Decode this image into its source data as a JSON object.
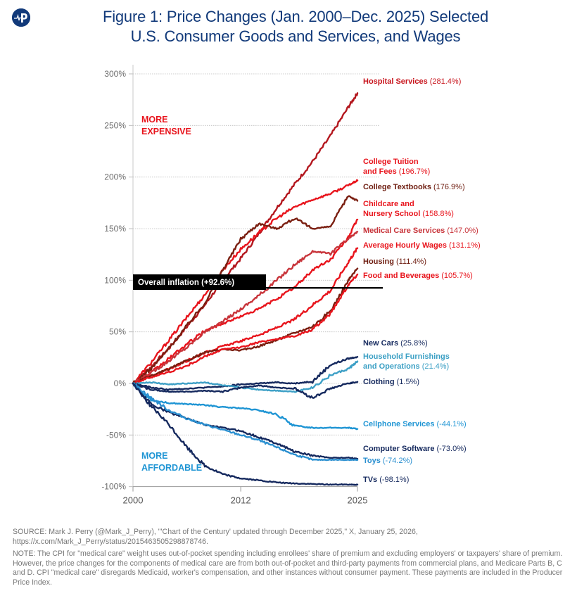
{
  "logo": {
    "icon": "heartbeat-p-logo-icon"
  },
  "title": {
    "line1": "Figure 1: Price Changes (Jan. 2000–Dec. 2025) Selected",
    "line2": "U.S. Consumer Goods and Services, and Wages"
  },
  "footer": {
    "source": "SOURCE: Mark J. Perry (@Mark_J_Perry), \"'Chart of the Century' updated through December 2025,\" X, January 25, 2026, https://x.com/Mark_J_Perry/status/2015463505298878746.",
    "note": "NOTE: The CPI for \"medical care\" weight uses out-of-pocket spending including enrollees' share of premium and excluding employers' or taxpayers' share of premium. However, the price changes for the components of medical care are from both out-of-pocket and third-party payments from commercial plans, and Medicare Parts B, C and D. CPI \"medical care\" disregards Medicaid, worker's compensation, and other instances without consumer payment. These payments are included in the Producer Price Index."
  },
  "chart_data": {
    "type": "line",
    "title": "Figure 1: Price Changes (Jan. 2000–Dec. 2025) Selected U.S. Consumer Goods and Services, and Wages",
    "xlabel": "",
    "ylabel": "",
    "xlim": [
      2000,
      2025
    ],
    "ylim": [
      -100,
      300
    ],
    "x_ticks": [
      "2000",
      "2012",
      "2025"
    ],
    "x_tick_values": [
      2000,
      2012,
      2025
    ],
    "y_ticks": [
      "300%",
      "250%",
      "200%",
      "150%",
      "100%",
      "50%",
      "0%",
      "-50%",
      "-100%"
    ],
    "y_tick_values": [
      300,
      250,
      200,
      150,
      100,
      50,
      0,
      -50,
      -100
    ],
    "grid": "horizontal-dotted",
    "legend": "direct-labels-right",
    "annotations": {
      "more_expensive": [
        "MORE",
        "EXPENSIVE"
      ],
      "more_affordable": [
        "MORE",
        "AFFORDABLE"
      ],
      "overall_inflation": {
        "label": "Overall inflation (+92.6%)",
        "value": 92.6
      }
    },
    "colors": {
      "red": "#e8141c",
      "dark_red": "#b3161d",
      "maroon": "#7a1e10",
      "rose": "#c8343a",
      "navy": "#15295e",
      "light_blue": "#1f95d4",
      "teal_blue": "#3ea0c6",
      "mid_blue": "#2a8fd0",
      "axis_text": "#6b6b6b",
      "title": "#123a7a"
    },
    "x": [
      2000,
      2002,
      2004,
      2006,
      2008,
      2010,
      2012,
      2014,
      2016,
      2018,
      2020,
      2022,
      2024,
      2025
    ],
    "series": [
      {
        "name": "Hospital Services",
        "final": "(281.4%)",
        "color": "#b3161d",
        "label_color": "#b3161d",
        "values": [
          0,
          16,
          34,
          55,
          76,
          100,
          121,
          145,
          170,
          193,
          215,
          240,
          268,
          281.4
        ]
      },
      {
        "name": "College Tuition and Fees",
        "final": "(196.7%)",
        "color": "#e8141c",
        "label_color": "#e8141c",
        "values": [
          0,
          20,
          42,
          64,
          86,
          110,
          130,
          146,
          160,
          171,
          178,
          184,
          192,
          196.7
        ]
      },
      {
        "name": "College Textbooks",
        "final": "(176.9%)",
        "color": "#7a1e10",
        "label_color": "#7a1e10",
        "values": [
          0,
          14,
          34,
          56,
          78,
          110,
          140,
          155,
          150,
          160,
          150,
          152,
          182,
          176.9
        ]
      },
      {
        "name": "Childcare and Nursery School",
        "final": "(158.8%)",
        "color": "#e8141c",
        "label_color": "#e8141c",
        "values": [
          0,
          10,
          24,
          38,
          51,
          58,
          65,
          72,
          82,
          93,
          110,
          120,
          142,
          158.8
        ]
      },
      {
        "name": "Medical Care Services",
        "final": "(147.0%)",
        "color": "#c8343a",
        "label_color": "#c8343a",
        "values": [
          0,
          10,
          22,
          35,
          50,
          60,
          72,
          85,
          100,
          115,
          128,
          126,
          140,
          147.0
        ]
      },
      {
        "name": "Average Hourly Wages",
        "final": "(131.1%)",
        "color": "#e8141c",
        "label_color": "#e8141c",
        "values": [
          0,
          7,
          14,
          22,
          30,
          36,
          41,
          47,
          54,
          62,
          76,
          90,
          118,
          131.1
        ]
      },
      {
        "name": "Housing",
        "final": "(111.4%)",
        "color": "#7a1e10",
        "label_color": "#7a1e10",
        "values": [
          0,
          7,
          14,
          22,
          30,
          33,
          32,
          36,
          42,
          49,
          55,
          70,
          100,
          111.4
        ]
      },
      {
        "name": "Food and Beverages",
        "final": "(105.7%)",
        "color": "#e8141c",
        "label_color": "#e8141c",
        "values": [
          0,
          6,
          11,
          17,
          26,
          33,
          35,
          40,
          43,
          46,
          52,
          68,
          96,
          105.7
        ]
      },
      {
        "name": "New Cars",
        "final": "(25.8%)",
        "color": "#15295e",
        "label_color": "#15295e",
        "values": [
          0,
          -4,
          -6,
          -5,
          -4,
          -3,
          -1,
          0,
          1,
          0,
          2,
          18,
          24,
          25.8
        ]
      },
      {
        "name": "Household Furnishings and Operations",
        "final": "(21.4%)",
        "color": "#3ea0c6",
        "label_color": "#3ea0c6",
        "values": [
          0,
          1,
          -1,
          0,
          1,
          -2,
          -4,
          -6,
          -7,
          -8,
          -4,
          8,
          14,
          21.4
        ]
      },
      {
        "name": "Clothing",
        "final": "(1.5%)",
        "color": "#15295e",
        "label_color": "#15295e",
        "values": [
          0,
          -6,
          -8,
          -8,
          -7,
          -8,
          -4,
          -2,
          -4,
          -5,
          -14,
          -5,
          0,
          1.5
        ]
      },
      {
        "name": "Cellphone Services",
        "final": "(-44.1%)",
        "color": "#1f95d4",
        "label_color": "#1f95d4",
        "values": [
          0,
          -16,
          -19,
          -20,
          -21,
          -23,
          -24,
          -26,
          -30,
          -41,
          -43,
          -43,
          -43,
          -44.1
        ]
      },
      {
        "name": "Computer Software",
        "final": "(-73.0%)",
        "color": "#15295e",
        "label_color": "#15295e",
        "values": [
          0,
          -20,
          -28,
          -34,
          -40,
          -43,
          -46,
          -52,
          -58,
          -66,
          -70,
          -72,
          -72,
          -73.0
        ]
      },
      {
        "name": "Toys",
        "final": "(-74.2%)",
        "color": "#2a8fd0",
        "label_color": "#2a8fd0",
        "values": [
          0,
          -14,
          -26,
          -34,
          -40,
          -45,
          -50,
          -55,
          -62,
          -69,
          -74,
          -74,
          -74,
          -74.2
        ]
      },
      {
        "name": "TVs",
        "final": "(-98.1%)",
        "color": "#15295e",
        "label_color": "#15295e",
        "values": [
          0,
          -22,
          -40,
          -62,
          -80,
          -88,
          -92,
          -94,
          -96,
          -97,
          -97.5,
          -98,
          -98,
          -98.1
        ]
      }
    ],
    "labels": [
      {
        "lines": [
          "Hospital Services"
        ],
        "value": "(281.4%)",
        "color": "#c8141c"
      },
      {
        "lines": [
          "College Tuition",
          "and Fees"
        ],
        "value": "(196.7%)",
        "color": "#e8141c"
      },
      {
        "lines": [
          "College Textbooks"
        ],
        "value": "(176.9%)",
        "color": "#6e1d10"
      },
      {
        "lines": [
          "Childcare and",
          "Nursery School"
        ],
        "value": "(158.8%)",
        "color": "#e8141c"
      },
      {
        "lines": [
          "Medical Care Services"
        ],
        "value": "(147.0%)",
        "color": "#c8343a"
      },
      {
        "lines": [
          "Average Hourly Wages"
        ],
        "value": "(131.1%)",
        "color": "#e8141c"
      },
      {
        "lines": [
          "Housing"
        ],
        "value": "(111.4%)",
        "color": "#6e1d10"
      },
      {
        "lines": [
          "Food and Beverages"
        ],
        "value": "(105.7%)",
        "color": "#e8141c"
      },
      {
        "lines": [
          "New Cars"
        ],
        "value": "(25.8%)",
        "color": "#15295e"
      },
      {
        "lines": [
          "Household Furnishings",
          "and Operations"
        ],
        "value": "(21.4%)",
        "color": "#3a9fc4"
      },
      {
        "lines": [
          "Clothing"
        ],
        "value": "(1.5%)",
        "color": "#15295e"
      },
      {
        "lines": [
          "Cellphone Services"
        ],
        "value": "(-44.1%)",
        "color": "#1f95d4"
      },
      {
        "lines": [
          "Computer Software"
        ],
        "value": "(-73.0%)",
        "color": "#15295e"
      },
      {
        "lines": [
          "Toys"
        ],
        "value": "(-74.2%)",
        "color": "#2a8fd0"
      },
      {
        "lines": [
          "TVs"
        ],
        "value": "(-98.1%)",
        "color": "#15295e"
      }
    ]
  }
}
